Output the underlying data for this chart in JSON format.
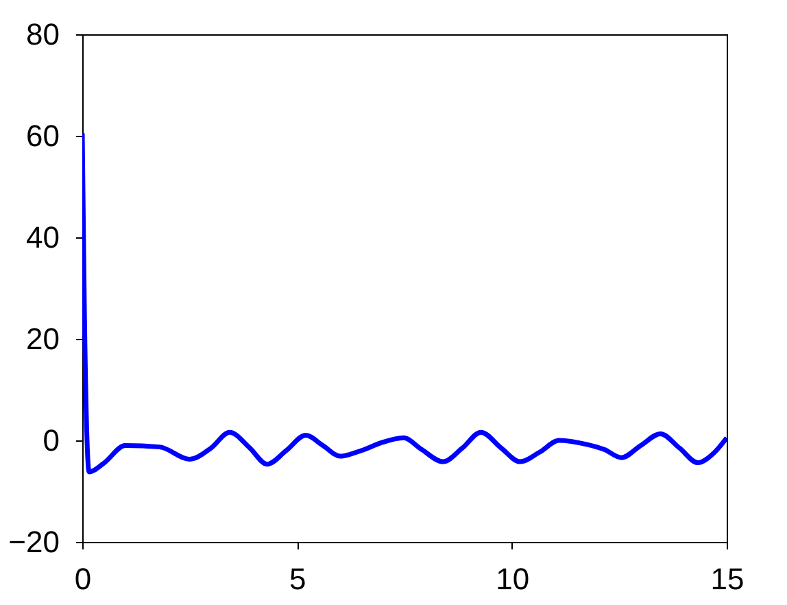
{
  "chart_data": {
    "type": "line",
    "x": [
      0,
      0.05,
      0.16,
      0.5,
      1.0,
      1.8,
      2.5,
      3.0,
      3.43,
      3.9,
      4.3,
      4.75,
      5.2,
      5.6,
      6.0,
      6.5,
      6.95,
      7.48,
      7.9,
      8.4,
      8.85,
      9.28,
      9.75,
      10.19,
      10.65,
      11.1,
      11.74,
      12.15,
      12.55,
      13.0,
      13.46,
      13.9,
      14.33,
      14.7,
      15
    ],
    "series": [
      {
        "color": "#0000ff",
        "values": [
          60.5,
          25,
          -6.2,
          -4.5,
          -1.0,
          -1.3,
          -3.7,
          -1.5,
          1.6,
          -1.5,
          -4.7,
          -2.0,
          1.0,
          -1.0,
          -3.1,
          -2.0,
          -0.5,
          0.5,
          -1.8,
          -4.2,
          -1.5,
          1.6,
          -1.5,
          -4.2,
          -2.3,
          0.0,
          -0.8,
          -1.8,
          -3.4,
          -1.0,
          1.3,
          -1.5,
          -4.4,
          -2.5,
          0.5
        ]
      }
    ],
    "xlim": [
      0,
      15
    ],
    "xticks": [
      0,
      5,
      10,
      15
    ],
    "ylim": [
      -20,
      80
    ],
    "yticks": [
      -20,
      0,
      20,
      40,
      60,
      80
    ],
    "grid": false,
    "marker": "none",
    "line_style": "solid"
  }
}
